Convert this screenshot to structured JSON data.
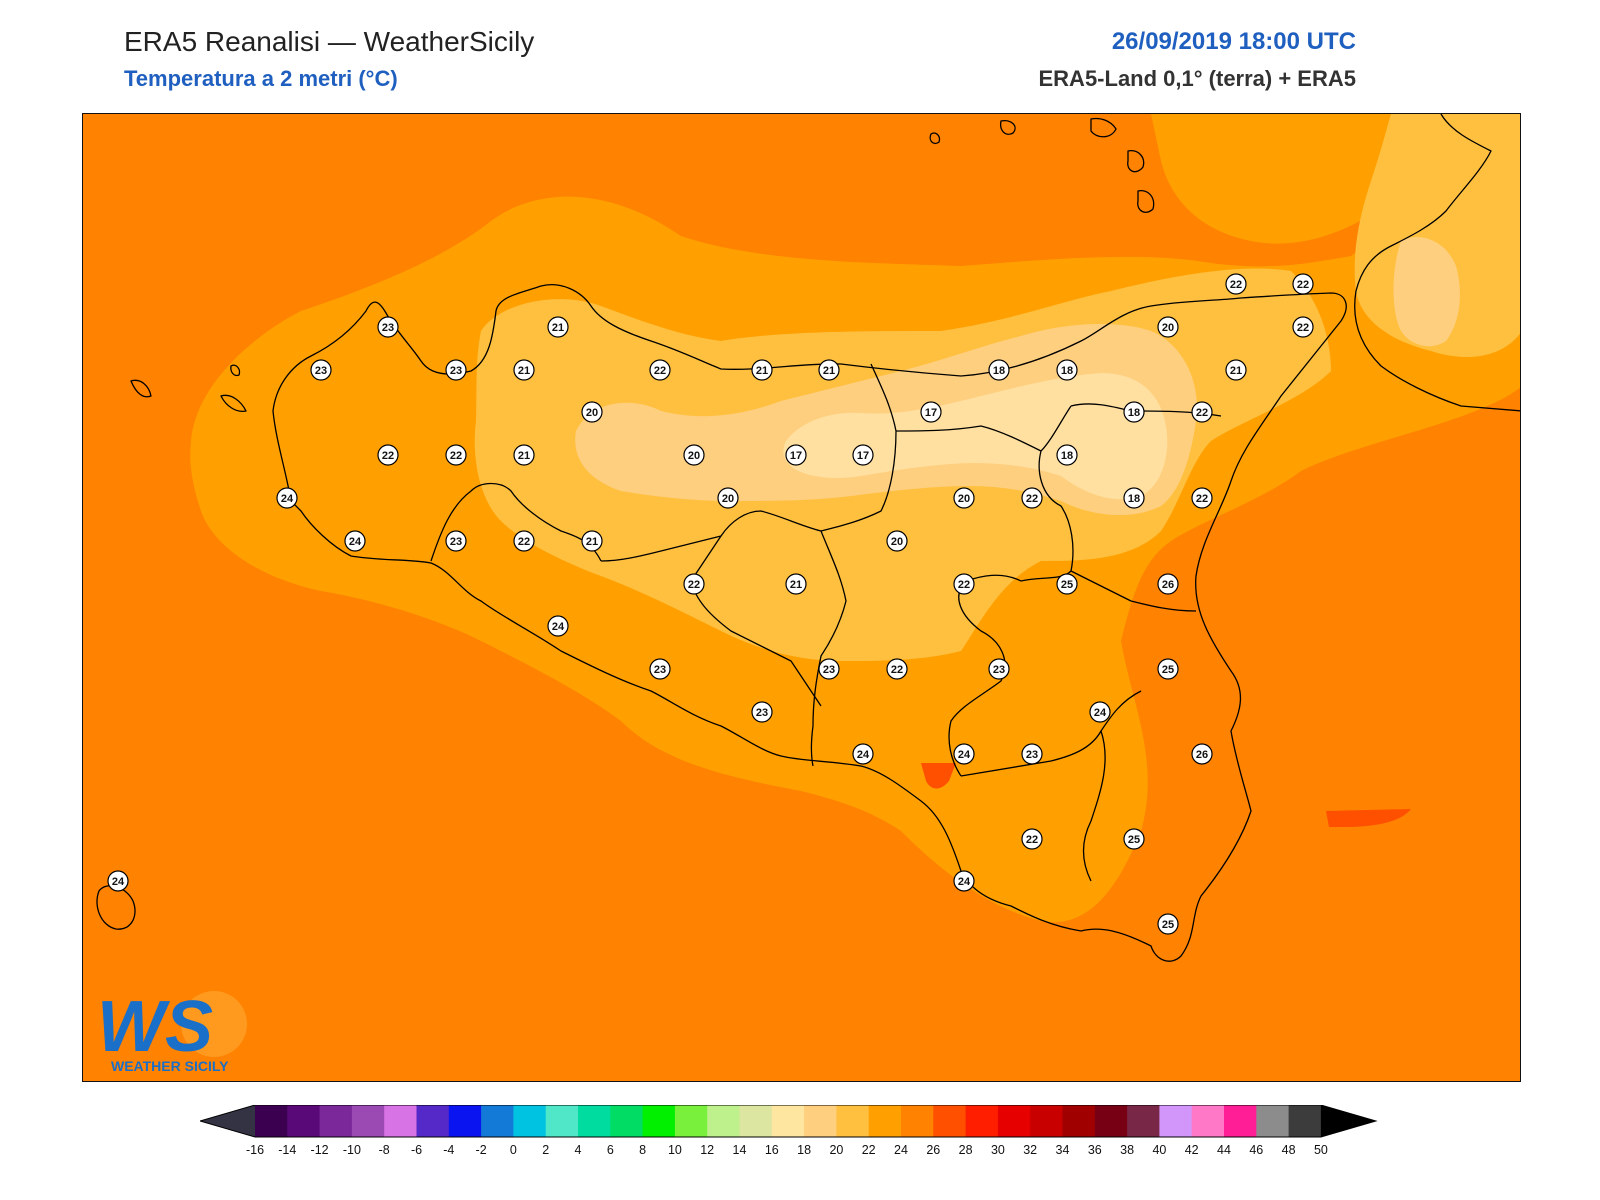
{
  "header": {
    "title": "ERA5 Reanalisi — WeatherSicily",
    "subtitle": "Temperatura a 2 metri (°C)",
    "datetime": "26/09/2019 18:00 UTC",
    "source": "ERA5-Land 0,1° (terra) + ERA5"
  },
  "colors": {
    "sea_26": "#ff8200",
    "band_24": "#ffa000",
    "band_22": "#ffc040",
    "band_20": "#ffcf80",
    "band_18": "#ffe0a0",
    "band_28": "#ff5000",
    "title_blue": "#1f5fbf"
  },
  "logo": {
    "mark": "WS",
    "text": "WEATHER SICILY"
  },
  "stations": [
    {
      "v": "23"
    },
    {
      "v": "21"
    },
    {
      "v": "20"
    },
    {
      "v": "22"
    },
    {
      "v": "22"
    },
    {
      "v": "23"
    },
    {
      "v": "23"
    },
    {
      "v": "21"
    },
    {
      "v": "22"
    },
    {
      "v": "21"
    },
    {
      "v": "21"
    },
    {
      "v": "18"
    },
    {
      "v": "18"
    },
    {
      "v": "21"
    },
    {
      "v": "22"
    },
    {
      "v": "20"
    },
    {
      "v": "17"
    },
    {
      "v": "18"
    },
    {
      "v": "22"
    },
    {
      "v": "22"
    },
    {
      "v": "22"
    },
    {
      "v": "21"
    },
    {
      "v": "20"
    },
    {
      "v": "17"
    },
    {
      "v": "17"
    },
    {
      "v": "18"
    },
    {
      "v": "18"
    },
    {
      "v": "24"
    },
    {
      "v": "20"
    },
    {
      "v": "20"
    },
    {
      "v": "22"
    },
    {
      "v": "22"
    },
    {
      "v": "24"
    },
    {
      "v": "23"
    },
    {
      "v": "22"
    },
    {
      "v": "21"
    },
    {
      "v": "22"
    },
    {
      "v": "21"
    },
    {
      "v": "20"
    },
    {
      "v": "22"
    },
    {
      "v": "25"
    },
    {
      "v": "26"
    },
    {
      "v": "24"
    },
    {
      "v": "23"
    },
    {
      "v": "23"
    },
    {
      "v": "22"
    },
    {
      "v": "23"
    },
    {
      "v": "25"
    },
    {
      "v": "24"
    },
    {
      "v": "23"
    },
    {
      "v": "24"
    },
    {
      "v": "24"
    },
    {
      "v": "23"
    },
    {
      "v": "26"
    },
    {
      "v": "22"
    },
    {
      "v": "25"
    },
    {
      "v": "24"
    },
    {
      "v": "25"
    },
    {
      "v": "24"
    }
  ],
  "colorbar": {
    "ticks": [
      "-16",
      "-14",
      "-12",
      "-10",
      "-8",
      "-6",
      "-4",
      "-2",
      "0",
      "2",
      "4",
      "6",
      "8",
      "10",
      "12",
      "14",
      "16",
      "18",
      "20",
      "22",
      "24",
      "26",
      "28",
      "30",
      "32",
      "34",
      "36",
      "38",
      "40",
      "42",
      "44",
      "46",
      "48",
      "50"
    ],
    "under_color": "#333344",
    "over_color": "#000000",
    "colors": [
      "#3c0050",
      "#5a0a78",
      "#7a289a",
      "#9b4ab4",
      "#d873e6",
      "#5528c8",
      "#0a14f0",
      "#147ad7",
      "#00c3e1",
      "#50e6c8",
      "#00dca0",
      "#00dc64",
      "#00f000",
      "#78f03c",
      "#bef08c",
      "#dce6a0",
      "#ffe6a0",
      "#ffcf80",
      "#ffc040",
      "#ffa000",
      "#ff8200",
      "#ff5000",
      "#ff1e00",
      "#e60000",
      "#c80000",
      "#a00000",
      "#780014",
      "#782846",
      "#d296fa",
      "#ff78c8",
      "#ff1e96",
      "#8c8c8c",
      "#3c3c3c"
    ]
  }
}
